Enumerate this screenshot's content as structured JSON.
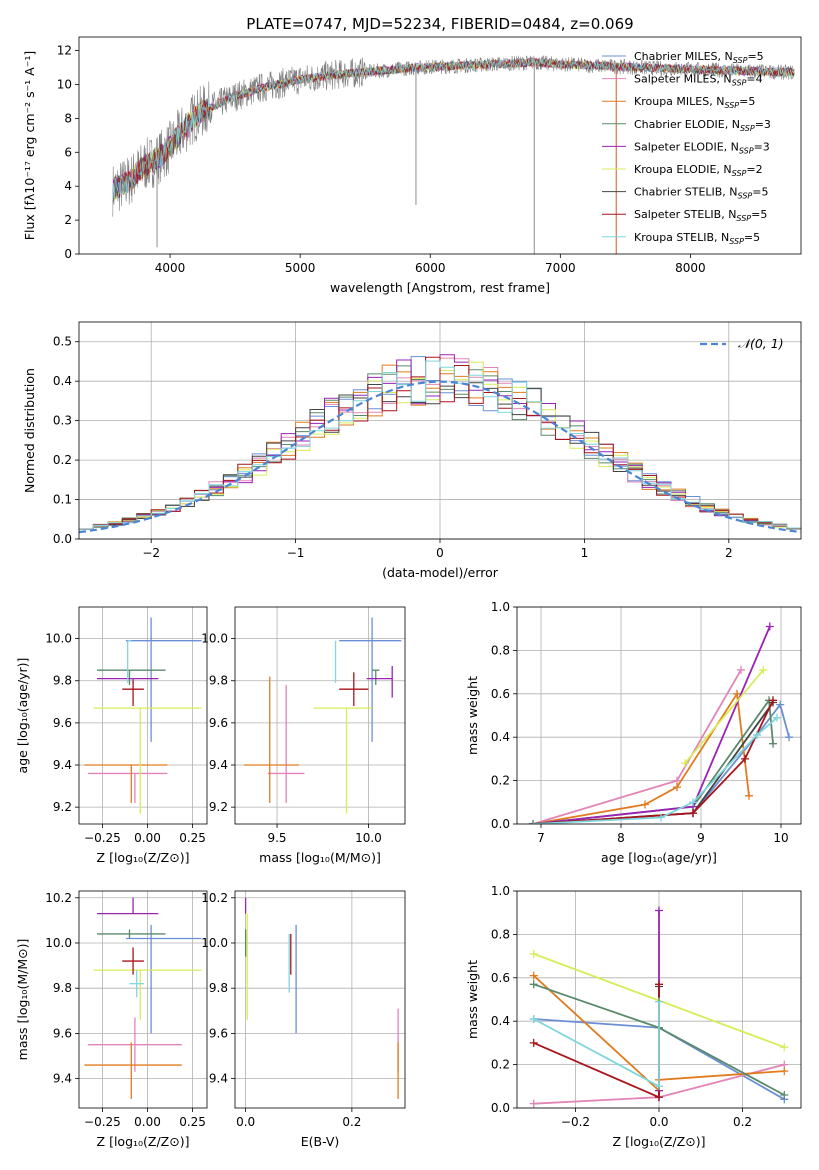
{
  "figure_title": "PLATE=0747, MJD=52234, FIBERID=0484, z=0.069",
  "colors": {
    "Chabrier MILES": "#6b8fd6",
    "Salpeter MILES": "#e384b8",
    "Kroupa MILES": "#e07b1f",
    "Chabrier ELODIE": "#5a8a6a",
    "Salpeter ELODIE": "#9b22b5",
    "Kroupa ELODIE": "#d8ec5a",
    "Chabrier STELIB": "#444444",
    "Salpeter STELIB": "#a8151b",
    "Kroupa STELIB": "#7fd6dd"
  },
  "chart_data": [
    {
      "id": "spectrum",
      "type": "line",
      "xlabel": "wavelength [Angstrom, rest frame]",
      "ylabel": "Flux [fλ10⁻¹⁷ erg cm⁻² s⁻¹ A⁻¹]",
      "xlim": [
        3300,
        8850
      ],
      "ylim": [
        0,
        12.8
      ],
      "xticks": [
        4000,
        5000,
        6000,
        7000,
        8000
      ],
      "yticks": [
        0,
        2,
        4,
        6,
        8,
        10,
        12
      ],
      "grid": false,
      "legend_position": "right",
      "data_color": "#808080",
      "continuum": {
        "x": [
          3560,
          3620,
          3700,
          3800,
          3900,
          4000,
          4100,
          4200,
          4300,
          4500,
          4700,
          5000,
          5300,
          5600,
          5900,
          6200,
          6500,
          6800,
          7000,
          7300,
          7600,
          8000,
          8400,
          8800
        ],
        "y": [
          3.8,
          4.0,
          4.4,
          5.2,
          5.6,
          6.3,
          7.3,
          8.2,
          8.6,
          9.3,
          9.8,
          10.3,
          10.6,
          10.8,
          11.0,
          11.1,
          11.2,
          11.3,
          11.2,
          11.1,
          11.0,
          10.9,
          10.8,
          10.7
        ]
      },
      "legend": [
        {
          "label": "Chabrier MILES, N",
          "sub": "SSP",
          "suffix": "=5"
        },
        {
          "label": "Salpeter MILES, N",
          "sub": "SSP",
          "suffix": "=4"
        },
        {
          "label": "Kroupa MILES, N",
          "sub": "SSP",
          "suffix": "=5"
        },
        {
          "label": "Chabrier ELODIE, N",
          "sub": "SSP",
          "suffix": "=3"
        },
        {
          "label": "Salpeter ELODIE, N",
          "sub": "SSP",
          "suffix": "=3"
        },
        {
          "label": "Kroupa ELODIE, N",
          "sub": "SSP",
          "suffix": "=2"
        },
        {
          "label": "Chabrier STELIB, N",
          "sub": "SSP",
          "suffix": "=5"
        },
        {
          "label": "Salpeter STELIB, N",
          "sub": "SSP",
          "suffix": "=5"
        },
        {
          "label": "Kroupa STELIB, N",
          "sub": "SSP",
          "suffix": "=5"
        }
      ]
    },
    {
      "id": "residuals",
      "type": "line",
      "xlabel": "(data-model)/error",
      "ylabel": "Normed distribution",
      "xlim": [
        -2.5,
        2.5
      ],
      "ylim": [
        0,
        0.55
      ],
      "xticks": [
        -2,
        -1,
        0,
        1,
        2
      ],
      "yticks": [
        0.0,
        0.1,
        0.2,
        0.3,
        0.4,
        0.5
      ],
      "grid": true,
      "legend_position": "top-right",
      "gaussian_label": "𝒩(0, 1)",
      "gaussian": {
        "mean": 0,
        "sigma": 1
      },
      "histogram_bin_width": 0.1
    },
    {
      "id": "age_vs_Z",
      "type": "scatter",
      "xlabel": "Z [log₁₀(Z/Z⊙)]",
      "ylabel": "age  [log₁₀(age/yr)]",
      "xlim": [
        -0.38,
        0.33
      ],
      "ylim": [
        9.12,
        10.15
      ],
      "xticks": [
        -0.25,
        0.0,
        0.25
      ],
      "yticks": [
        9.2,
        9.4,
        9.6,
        9.8,
        10.0
      ],
      "grid": true,
      "points": [
        {
          "model": "Chabrier MILES",
          "x": 0.02,
          "y": 9.99,
          "xerr": [
            0.14,
            0.28
          ],
          "yerr": [
            0.48,
            0.11
          ]
        },
        {
          "model": "Salpeter MILES",
          "x": -0.07,
          "y": 9.36,
          "xerr": [
            0.26,
            0.18
          ],
          "yerr": [
            0.14,
            0.0
          ]
        },
        {
          "model": "Kroupa MILES",
          "x": -0.09,
          "y": 9.4,
          "xerr": [
            0.26,
            0.2
          ],
          "yerr": [
            0.18,
            0.0
          ]
        },
        {
          "model": "Chabrier ELODIE",
          "x": -0.1,
          "y": 9.85,
          "xerr": [
            0.18,
            0.2
          ],
          "yerr": [
            0.07,
            0.0
          ]
        },
        {
          "model": "Salpeter ELODIE",
          "x": -0.08,
          "y": 9.81,
          "xerr": [
            0.2,
            0.14
          ],
          "yerr": [
            0.02,
            0.0
          ]
        },
        {
          "model": "Kroupa ELODIE",
          "x": -0.04,
          "y": 9.67,
          "xerr": [
            0.26,
            0.34
          ],
          "yerr": [
            0.5,
            0.0
          ]
        },
        {
          "model": "Chabrier STELIB",
          "x": -0.09,
          "y": 9.78,
          "xerr": [
            0.0,
            0.0
          ],
          "yerr": [
            0.0,
            0.0
          ]
        },
        {
          "model": "Salpeter STELIB",
          "x": -0.08,
          "y": 9.76,
          "xerr": [
            0.06,
            0.06
          ],
          "yerr": [
            0.08,
            0.04
          ]
        },
        {
          "model": "Kroupa STELIB",
          "x": -0.11,
          "y": 9.99,
          "xerr": [
            0.0,
            0.02
          ],
          "yerr": [
            0.2,
            0.0
          ]
        }
      ]
    },
    {
      "id": "age_vs_mass",
      "type": "scatter",
      "xlabel": "mass [log₁₀(M/M⊙)]",
      "ylabel": "",
      "xlim": [
        9.27,
        10.2
      ],
      "ylim": [
        9.12,
        10.15
      ],
      "xticks": [
        9.5,
        10.0
      ],
      "yticks": [
        9.2,
        9.4,
        9.6,
        9.8,
        10.0
      ],
      "grid": true,
      "points": [
        {
          "model": "Chabrier MILES",
          "x": 10.02,
          "y": 9.99,
          "xerr": [
            0.18,
            0.16
          ],
          "yerr": [
            0.48,
            0.11
          ]
        },
        {
          "model": "Salpeter MILES",
          "x": 9.55,
          "y": 9.36,
          "xerr": [
            0.1,
            0.1
          ],
          "yerr": [
            0.14,
            0.42
          ]
        },
        {
          "model": "Kroupa MILES",
          "x": 9.46,
          "y": 9.4,
          "xerr": [
            0.14,
            0.16
          ],
          "yerr": [
            0.18,
            0.42
          ]
        },
        {
          "model": "Chabrier ELODIE",
          "x": 10.04,
          "y": 9.85,
          "xerr": [
            0.02,
            0.02
          ],
          "yerr": [
            0.07,
            0.0
          ]
        },
        {
          "model": "Salpeter ELODIE",
          "x": 10.13,
          "y": 9.81,
          "xerr": [
            0.14,
            0.0
          ],
          "yerr": [
            0.09,
            0.06
          ]
        },
        {
          "model": "Kroupa ELODIE",
          "x": 9.88,
          "y": 9.67,
          "xerr": [
            0.18,
            0.14
          ],
          "yerr": [
            0.5,
            0.0
          ]
        },
        {
          "model": "Chabrier STELIB",
          "x": 9.91,
          "y": 9.78,
          "xerr": [
            0.0,
            0.0
          ],
          "yerr": [
            0.0,
            0.0
          ]
        },
        {
          "model": "Salpeter STELIB",
          "x": 9.92,
          "y": 9.76,
          "xerr": [
            0.08,
            0.08
          ],
          "yerr": [
            0.08,
            0.08
          ]
        },
        {
          "model": "Kroupa STELIB",
          "x": 9.82,
          "y": 9.99,
          "xerr": [
            0.0,
            0.0
          ],
          "yerr": [
            0.2,
            0.0
          ]
        }
      ]
    },
    {
      "id": "weight_vs_age",
      "type": "line",
      "xlabel": "age  [log₁₀(age/yr)]",
      "ylabel": "mass weight",
      "xlim": [
        6.7,
        10.25
      ],
      "ylim": [
        0,
        1.0
      ],
      "xticks": [
        7,
        8,
        9,
        10
      ],
      "yticks": [
        0.0,
        0.2,
        0.4,
        0.6,
        0.8,
        1.0
      ],
      "grid": true,
      "series": [
        {
          "model": "Chabrier MILES",
          "x": [
            6.9,
            8.9,
            9.7,
            9.99,
            10.1
          ],
          "y": [
            0.0,
            0.05,
            0.41,
            0.55,
            0.4
          ]
        },
        {
          "model": "Salpeter MILES",
          "x": [
            6.9,
            8.7,
            9.5
          ],
          "y": [
            0.0,
            0.2,
            0.71
          ]
        },
        {
          "model": "Kroupa MILES",
          "x": [
            6.9,
            8.3,
            8.7,
            9.45,
            9.6
          ],
          "y": [
            0.0,
            0.09,
            0.17,
            0.6,
            0.13
          ]
        },
        {
          "model": "Chabrier ELODIE",
          "x": [
            6.9,
            8.9,
            9.85,
            9.9
          ],
          "y": [
            0.0,
            0.08,
            0.57,
            0.37
          ]
        },
        {
          "model": "Salpeter ELODIE",
          "x": [
            6.9,
            8.9,
            9.86
          ],
          "y": [
            0.0,
            0.08,
            0.91
          ]
        },
        {
          "model": "Kroupa ELODIE",
          "x": [
            8.8,
            9.78
          ],
          "y": [
            0.28,
            0.71
          ]
        },
        {
          "model": "Chabrier STELIB",
          "x": [
            6.9,
            8.9,
            9.9
          ],
          "y": [
            0.0,
            0.05,
            0.56
          ]
        },
        {
          "model": "Salpeter STELIB",
          "x": [
            6.9,
            8.9,
            9.55,
            9.9
          ],
          "y": [
            0.0,
            0.05,
            0.3,
            0.57
          ]
        },
        {
          "model": "Kroupa STELIB",
          "x": [
            6.9,
            8.5,
            8.9,
            9.7,
            9.95
          ],
          "y": [
            0.0,
            0.03,
            0.1,
            0.41,
            0.49
          ]
        }
      ]
    },
    {
      "id": "mass_vs_Z",
      "type": "scatter",
      "xlabel": "Z [log₁₀(Z/Z⊙)]",
      "ylabel": "mass [log₁₀(M/M⊙)]",
      "xlim": [
        -0.38,
        0.33
      ],
      "ylim": [
        9.27,
        10.23
      ],
      "xticks": [
        -0.25,
        0.0,
        0.25
      ],
      "yticks": [
        9.4,
        9.6,
        9.8,
        10.0,
        10.2
      ],
      "grid": true,
      "points": [
        {
          "model": "Chabrier MILES",
          "x": 0.02,
          "y": 10.02,
          "xerr": [
            0.14,
            0.28
          ],
          "yerr": [
            0.42,
            0.06
          ]
        },
        {
          "model": "Salpeter MILES",
          "x": -0.07,
          "y": 9.55,
          "xerr": [
            0.26,
            0.26
          ],
          "yerr": [
            0.12,
            0.12
          ]
        },
        {
          "model": "Kroupa MILES",
          "x": -0.09,
          "y": 9.46,
          "xerr": [
            0.26,
            0.28
          ],
          "yerr": [
            0.15,
            0.1
          ]
        },
        {
          "model": "Chabrier ELODIE",
          "x": -0.1,
          "y": 10.04,
          "xerr": [
            0.18,
            0.2
          ],
          "yerr": [
            0.02,
            0.02
          ]
        },
        {
          "model": "Salpeter ELODIE",
          "x": -0.08,
          "y": 10.13,
          "xerr": [
            0.2,
            0.14
          ],
          "yerr": [
            0.0,
            0.07
          ]
        },
        {
          "model": "Kroupa ELODIE",
          "x": -0.04,
          "y": 9.88,
          "xerr": [
            0.26,
            0.34
          ],
          "yerr": [
            0.22,
            0.0
          ]
        },
        {
          "model": "Chabrier STELIB",
          "x": -0.09,
          "y": 9.91,
          "xerr": [
            0.0,
            0.0
          ],
          "yerr": [
            0.0,
            0.0
          ]
        },
        {
          "model": "Salpeter STELIB",
          "x": -0.08,
          "y": 9.92,
          "xerr": [
            0.06,
            0.06
          ],
          "yerr": [
            0.06,
            0.06
          ]
        },
        {
          "model": "Kroupa STELIB",
          "x": -0.06,
          "y": 9.82,
          "xerr": [
            0.04,
            0.04
          ],
          "yerr": [
            0.06,
            0.06
          ]
        }
      ]
    },
    {
      "id": "mass_vs_ebv",
      "type": "scatter",
      "xlabel": "E(B-V)",
      "ylabel": "",
      "xlim": [
        -0.02,
        0.3
      ],
      "ylim": [
        9.27,
        10.23
      ],
      "xticks": [
        0.0,
        0.2
      ],
      "yticks": [
        9.4,
        9.6,
        9.8,
        10.0,
        10.2
      ],
      "grid": true,
      "points": [
        {
          "model": "Chabrier MILES",
          "x": 0.095,
          "y": 10.02,
          "yerr": [
            0.42,
            0.06
          ]
        },
        {
          "model": "Salpeter MILES",
          "x": 0.287,
          "y": 9.55,
          "yerr": [
            0.12,
            0.16
          ]
        },
        {
          "model": "Kroupa MILES",
          "x": 0.287,
          "y": 9.46,
          "yerr": [
            0.15,
            0.1
          ]
        },
        {
          "model": "Chabrier ELODIE",
          "x": 0.0,
          "y": 10.04,
          "yerr": [
            0.1,
            0.02
          ]
        },
        {
          "model": "Salpeter ELODIE",
          "x": 0.0,
          "y": 10.13,
          "yerr": [
            0.0,
            0.07
          ]
        },
        {
          "model": "Kroupa ELODIE",
          "x": 0.003,
          "y": 9.88,
          "yerr": [
            0.22,
            0.25
          ]
        },
        {
          "model": "Chabrier STELIB",
          "x": 0.085,
          "y": 9.91,
          "yerr": [
            0.0,
            0.0
          ]
        },
        {
          "model": "Salpeter STELIB",
          "x": 0.085,
          "y": 9.92,
          "yerr": [
            0.06,
            0.12
          ]
        },
        {
          "model": "Kroupa STELIB",
          "x": 0.082,
          "y": 9.82,
          "yerr": [
            0.04,
            0.22
          ]
        }
      ]
    },
    {
      "id": "weight_vs_Z",
      "type": "line",
      "xlabel": "Z [log₁₀(Z/Z⊙)]",
      "ylabel": "mass weight",
      "xlim": [
        -0.34,
        0.34
      ],
      "ylim": [
        0,
        1.0
      ],
      "xticks": [
        -0.2,
        0.0,
        0.2
      ],
      "yticks": [
        0.0,
        0.2,
        0.4,
        0.6,
        0.8,
        1.0
      ],
      "grid": true,
      "series": [
        {
          "model": "Chabrier MILES",
          "x": [
            -0.3,
            0.0,
            0.3
          ],
          "y": [
            0.41,
            0.37,
            0.04
          ]
        },
        {
          "model": "Salpeter MILES",
          "x": [
            -0.3,
            0.0,
            0.3
          ],
          "y": [
            0.02,
            0.05,
            0.2
          ]
        },
        {
          "model": "Kroupa MILES",
          "x": [
            -0.3,
            0.0,
            0.0,
            0.3
          ],
          "y": [
            0.61,
            0.08,
            0.13,
            0.17
          ]
        },
        {
          "model": "Chabrier ELODIE",
          "x": [
            -0.3,
            0.0,
            0.3
          ],
          "y": [
            0.57,
            0.37,
            0.06
          ]
        },
        {
          "model": "Salpeter ELODIE",
          "x": [
            0.0,
            0.0
          ],
          "y": [
            0.91,
            0.08
          ]
        },
        {
          "model": "Kroupa ELODIE",
          "x": [
            -0.3,
            0.3
          ],
          "y": [
            0.71,
            0.28
          ]
        },
        {
          "model": "Chabrier STELIB",
          "x": [
            0.0,
            0.0
          ],
          "y": [
            0.56,
            0.05
          ]
        },
        {
          "model": "Salpeter STELIB",
          "x": [
            -0.3,
            0.0,
            0.0
          ],
          "y": [
            0.3,
            0.05,
            0.57
          ]
        },
        {
          "model": "Kroupa STELIB",
          "x": [
            -0.3,
            0.0,
            0.0
          ],
          "y": [
            0.41,
            0.1,
            0.49
          ]
        }
      ]
    }
  ]
}
